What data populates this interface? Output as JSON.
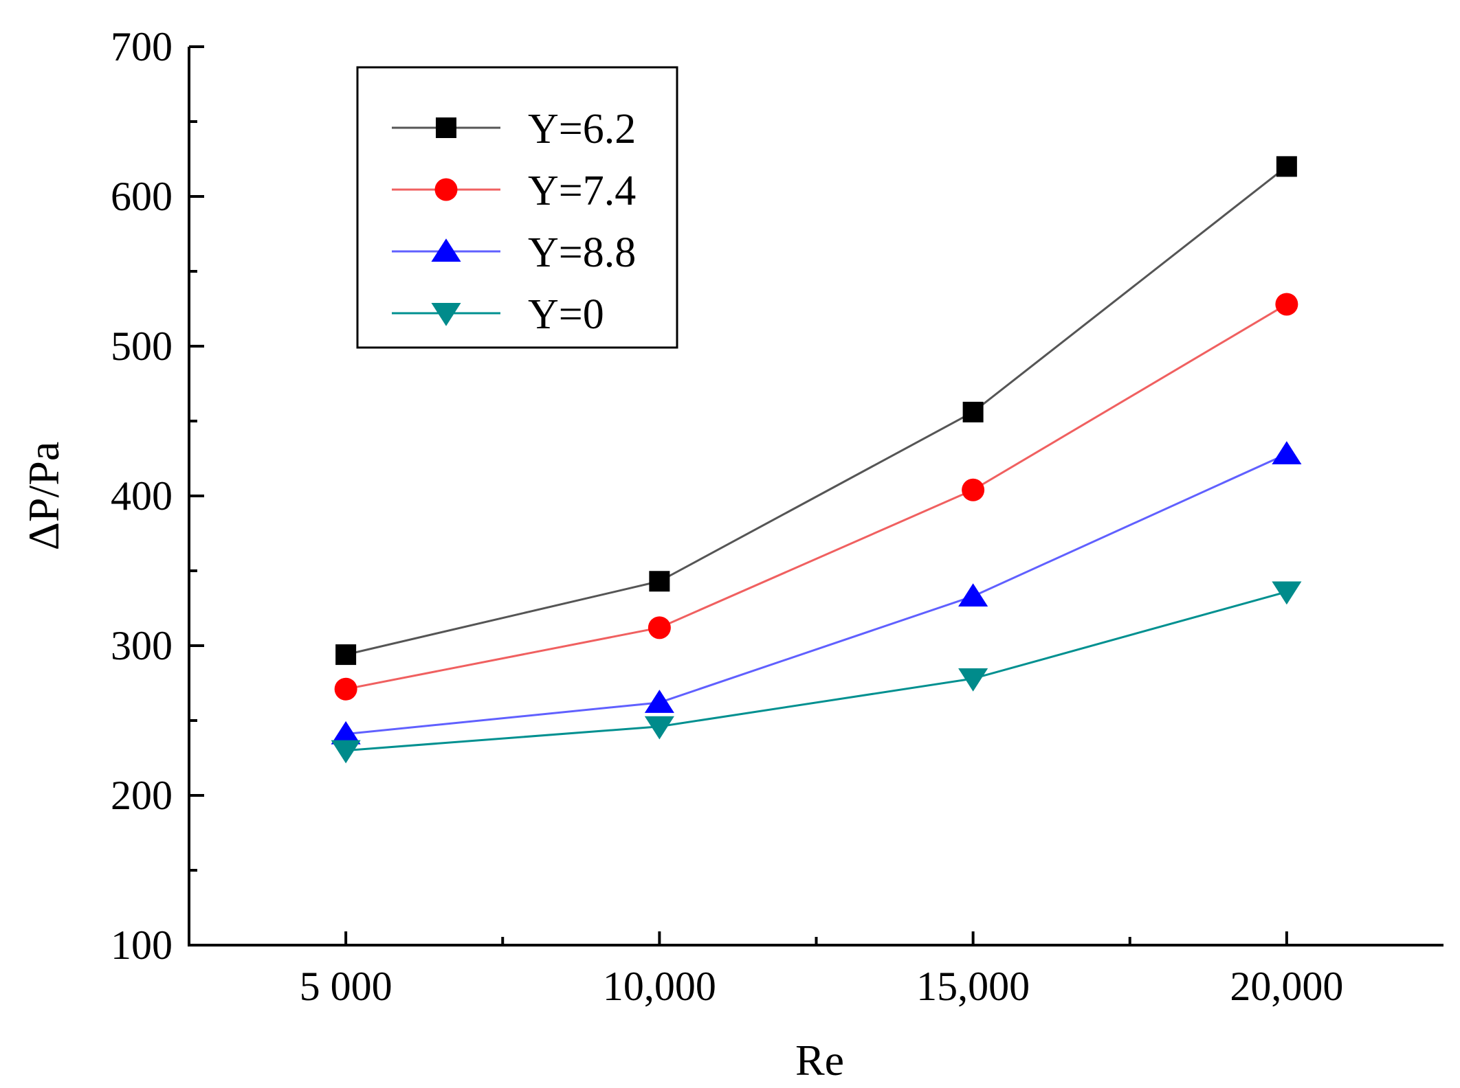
{
  "chart_data": {
    "type": "line",
    "title": "",
    "xlabel": "Re",
    "ylabel": "ΔP/Pa",
    "x": [
      5000,
      10000,
      15000,
      20000
    ],
    "x_tick_labels": [
      "5 000",
      "10,000",
      "15,000",
      "20,000"
    ],
    "xlim": [
      2500,
      22500
    ],
    "ylim": [
      100,
      700
    ],
    "y_ticks": [
      100,
      200,
      300,
      400,
      500,
      600,
      700
    ],
    "y_tick_labels": [
      "100",
      "200",
      "300",
      "400",
      "500",
      "600",
      "700"
    ],
    "grid": false,
    "legend_position": "top-left",
    "series": [
      {
        "name": "Y=6.2",
        "color": "#555555",
        "marker_color": "#000000",
        "marker": "square",
        "values": [
          294,
          343,
          456,
          620
        ]
      },
      {
        "name": "Y=7.4",
        "color": "#f06060",
        "marker_color": "#ff0000",
        "marker": "circle",
        "values": [
          271,
          312,
          404,
          528
        ]
      },
      {
        "name": "Y=8.8",
        "color": "#6060ff",
        "marker_color": "#0000ff",
        "marker": "triangle-up",
        "values": [
          241,
          262,
          333,
          428
        ]
      },
      {
        "name": "Y=0",
        "color": "#009090",
        "marker_color": "#008b8b",
        "marker": "triangle-down",
        "values": [
          230,
          246,
          278,
          336
        ]
      }
    ]
  }
}
